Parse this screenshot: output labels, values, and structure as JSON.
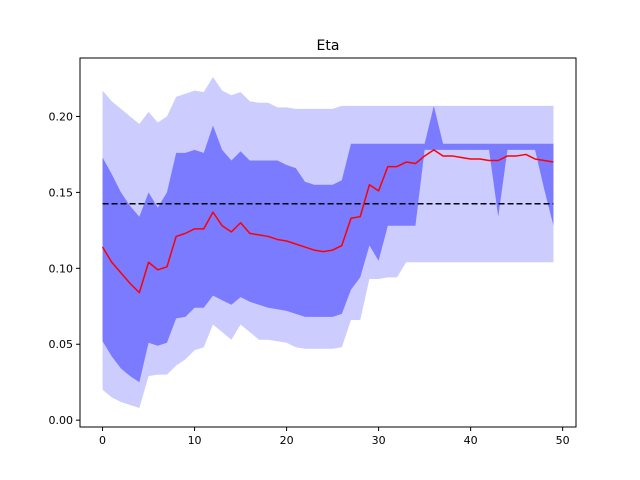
{
  "chart_data": {
    "type": "area",
    "title": "Eta",
    "xlabel": "",
    "ylabel": "",
    "xlim": [
      -2.45,
      51.45
    ],
    "ylim": [
      -0.0045,
      0.2385
    ],
    "xticks": [
      0,
      10,
      20,
      30,
      40,
      50
    ],
    "xtick_labels": [
      "0",
      "10",
      "20",
      "30",
      "40",
      "50"
    ],
    "yticks": [
      0.0,
      0.05,
      0.1,
      0.15,
      0.2
    ],
    "ytick_labels": [
      "0.00",
      "0.05",
      "0.10",
      "0.15",
      "0.20"
    ],
    "grid": false,
    "reference_line": {
      "y": 0.1425,
      "style": "dashed",
      "color": "#000000"
    },
    "x": [
      0,
      1,
      2,
      3,
      4,
      5,
      6,
      7,
      8,
      9,
      10,
      11,
      12,
      13,
      14,
      15,
      16,
      17,
      18,
      19,
      20,
      21,
      22,
      23,
      24,
      25,
      26,
      27,
      28,
      29,
      30,
      31,
      32,
      33,
      34,
      35,
      36,
      37,
      38,
      39,
      40,
      41,
      42,
      43,
      44,
      45,
      46,
      47,
      48,
      49
    ],
    "series": [
      {
        "role": "outer_band",
        "color": "#ccccff",
        "upper": [
          0.217,
          0.21,
          0.205,
          0.2,
          0.195,
          0.203,
          0.196,
          0.2,
          0.213,
          0.215,
          0.217,
          0.216,
          0.226,
          0.217,
          0.214,
          0.216,
          0.21,
          0.209,
          0.209,
          0.206,
          0.206,
          0.205,
          0.205,
          0.205,
          0.205,
          0.205,
          0.207,
          0.207,
          0.207,
          0.207,
          0.207,
          0.207,
          0.207,
          0.207,
          0.207,
          0.207,
          0.207,
          0.207,
          0.207,
          0.207,
          0.207,
          0.207,
          0.207,
          0.207,
          0.207,
          0.207,
          0.207,
          0.207,
          0.207,
          0.207
        ],
        "lower": [
          0.02,
          0.015,
          0.012,
          0.01,
          0.008,
          0.029,
          0.03,
          0.03,
          0.036,
          0.04,
          0.046,
          0.048,
          0.063,
          0.058,
          0.053,
          0.063,
          0.058,
          0.053,
          0.053,
          0.052,
          0.051,
          0.048,
          0.047,
          0.047,
          0.047,
          0.047,
          0.048,
          0.066,
          0.066,
          0.093,
          0.093,
          0.094,
          0.094,
          0.104,
          0.104,
          0.104,
          0.104,
          0.104,
          0.104,
          0.104,
          0.104,
          0.104,
          0.104,
          0.104,
          0.104,
          0.104,
          0.104,
          0.104,
          0.104,
          0.104
        ]
      },
      {
        "role": "inner_band",
        "color": "#7b7bff",
        "upper": [
          0.173,
          0.162,
          0.15,
          0.141,
          0.134,
          0.15,
          0.14,
          0.15,
          0.176,
          0.176,
          0.178,
          0.176,
          0.194,
          0.178,
          0.171,
          0.177,
          0.171,
          0.171,
          0.171,
          0.171,
          0.168,
          0.166,
          0.157,
          0.155,
          0.155,
          0.155,
          0.158,
          0.182,
          0.182,
          0.182,
          0.182,
          0.182,
          0.182,
          0.182,
          0.182,
          0.182,
          0.207,
          0.182,
          0.182,
          0.182,
          0.182,
          0.182,
          0.182,
          0.182,
          0.182,
          0.182,
          0.182,
          0.182,
          0.182,
          0.182
        ],
        "lower": [
          0.052,
          0.042,
          0.034,
          0.029,
          0.025,
          0.051,
          0.049,
          0.051,
          0.067,
          0.068,
          0.074,
          0.074,
          0.082,
          0.079,
          0.076,
          0.081,
          0.078,
          0.076,
          0.074,
          0.073,
          0.072,
          0.07,
          0.068,
          0.068,
          0.068,
          0.068,
          0.07,
          0.086,
          0.094,
          0.115,
          0.105,
          0.128,
          0.128,
          0.128,
          0.128,
          0.178,
          0.178,
          0.178,
          0.178,
          0.178,
          0.178,
          0.178,
          0.178,
          0.134,
          0.178,
          0.178,
          0.178,
          0.178,
          0.152,
          0.128
        ]
      },
      {
        "role": "median_line",
        "color": "#ff0000",
        "values": [
          0.114,
          0.104,
          0.097,
          0.09,
          0.084,
          0.104,
          0.099,
          0.101,
          0.121,
          0.123,
          0.126,
          0.126,
          0.137,
          0.128,
          0.124,
          0.13,
          0.123,
          0.122,
          0.121,
          0.119,
          0.118,
          0.116,
          0.114,
          0.112,
          0.111,
          0.112,
          0.115,
          0.133,
          0.134,
          0.155,
          0.151,
          0.167,
          0.167,
          0.17,
          0.169,
          0.174,
          0.178,
          0.174,
          0.174,
          0.173,
          0.172,
          0.172,
          0.171,
          0.171,
          0.174,
          0.174,
          0.175,
          0.172,
          0.171,
          0.17
        ]
      }
    ]
  }
}
